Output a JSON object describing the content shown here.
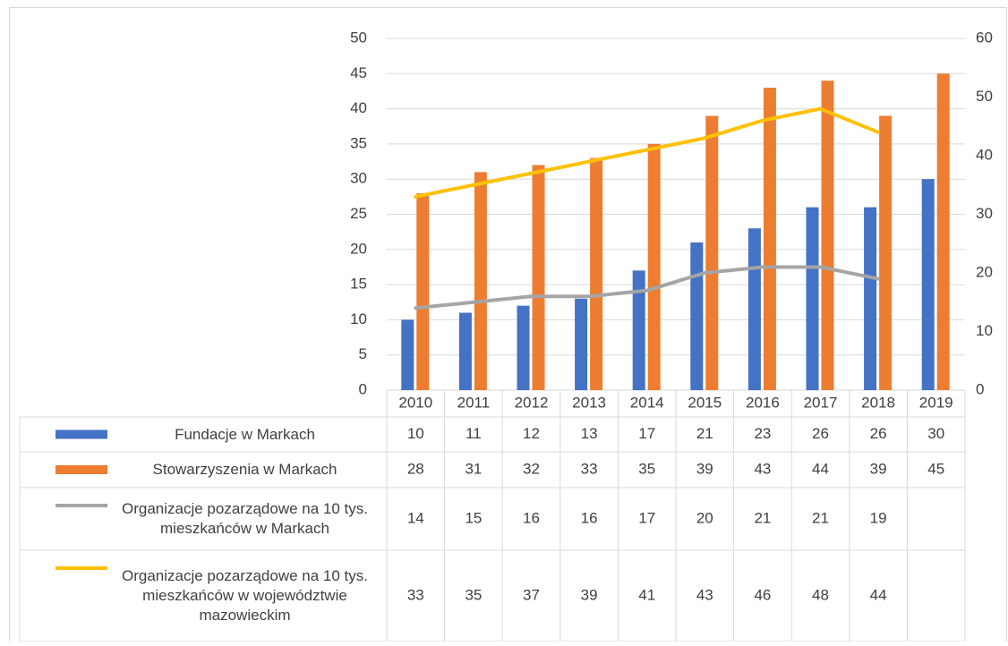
{
  "chart_data": {
    "type": "bar",
    "categories": [
      "2010",
      "2011",
      "2012",
      "2013",
      "2014",
      "2015",
      "2016",
      "2017",
      "2018",
      "2019"
    ],
    "series": [
      {
        "name": "Fundacje w Markach",
        "color": "#4472c4",
        "type": "bar",
        "values": [
          10,
          11,
          12,
          13,
          17,
          21,
          23,
          26,
          26,
          30
        ]
      },
      {
        "name": "Stowarzyszenia w Markach",
        "color": "#ed7d31",
        "type": "bar",
        "values": [
          28,
          31,
          32,
          33,
          35,
          39,
          43,
          44,
          39,
          45
        ]
      },
      {
        "name": "Organizacje pozarządowe na 10 tys. mieszkańców w Markach",
        "color": "#a5a5a5",
        "type": "line",
        "axis": "y2",
        "values": [
          14,
          15,
          16,
          16,
          17,
          20,
          21,
          21,
          19,
          null
        ]
      },
      {
        "name": "Organizacje pozarządowe na 10 tys. mieszkańców w województwie mazowieckim",
        "color": "#ffc000",
        "type": "line",
        "axis": "y2",
        "values": [
          33,
          35,
          37,
          39,
          41,
          43,
          46,
          48,
          44,
          null
        ]
      }
    ],
    "ylim": [
      0,
      50
    ],
    "yticks": [
      0,
      5,
      10,
      15,
      20,
      25,
      30,
      35,
      40,
      45,
      50
    ],
    "y2lim": [
      0,
      60
    ],
    "y2ticks": [
      0,
      10,
      20,
      30,
      40,
      50,
      60
    ],
    "grid": true,
    "legend": "table"
  }
}
